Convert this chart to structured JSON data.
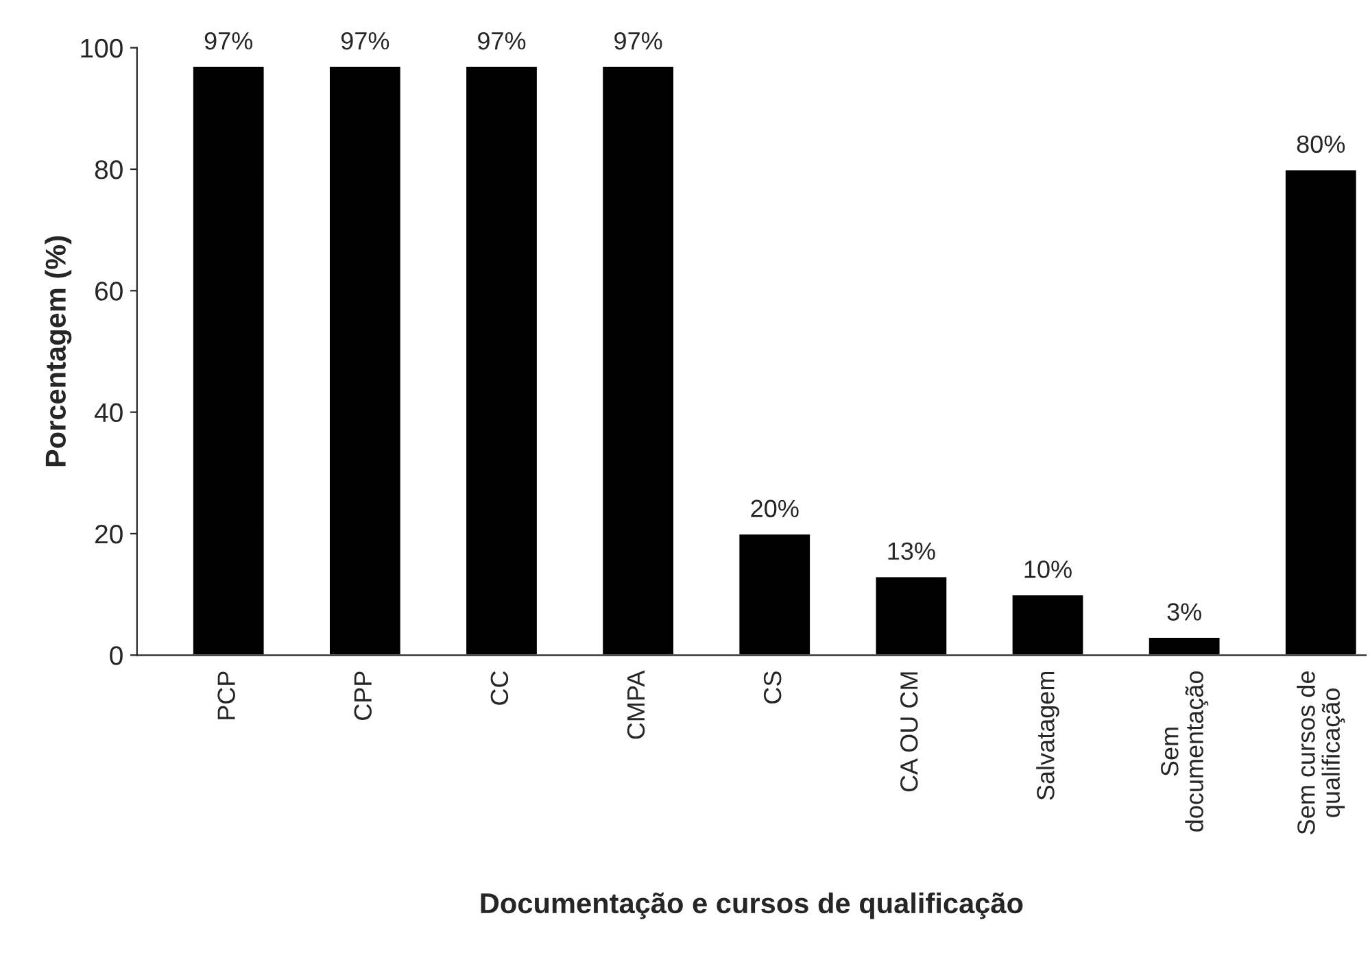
{
  "chart_data": {
    "type": "bar",
    "xlabel": "Documentação e cursos de qualificação",
    "ylabel": "Porcentagem (%)",
    "categories": [
      "PCP",
      "CPP",
      "CC",
      "CMPA",
      "CS",
      "CA OU CM",
      "Salvatagem",
      "Sem\ndocumentação",
      "Sem cursos de\nqualificação"
    ],
    "values": [
      97,
      97,
      97,
      97,
      20,
      13,
      10,
      3,
      80
    ],
    "value_labels": [
      "97%",
      "97%",
      "97%",
      "97%",
      "20%",
      "13%",
      "10%",
      "3%",
      "80%"
    ],
    "color": "#000000",
    "ylim": [
      0,
      100
    ],
    "yticks": [
      0,
      20,
      40,
      60,
      80,
      100
    ],
    "grid": false,
    "legend": false
  }
}
